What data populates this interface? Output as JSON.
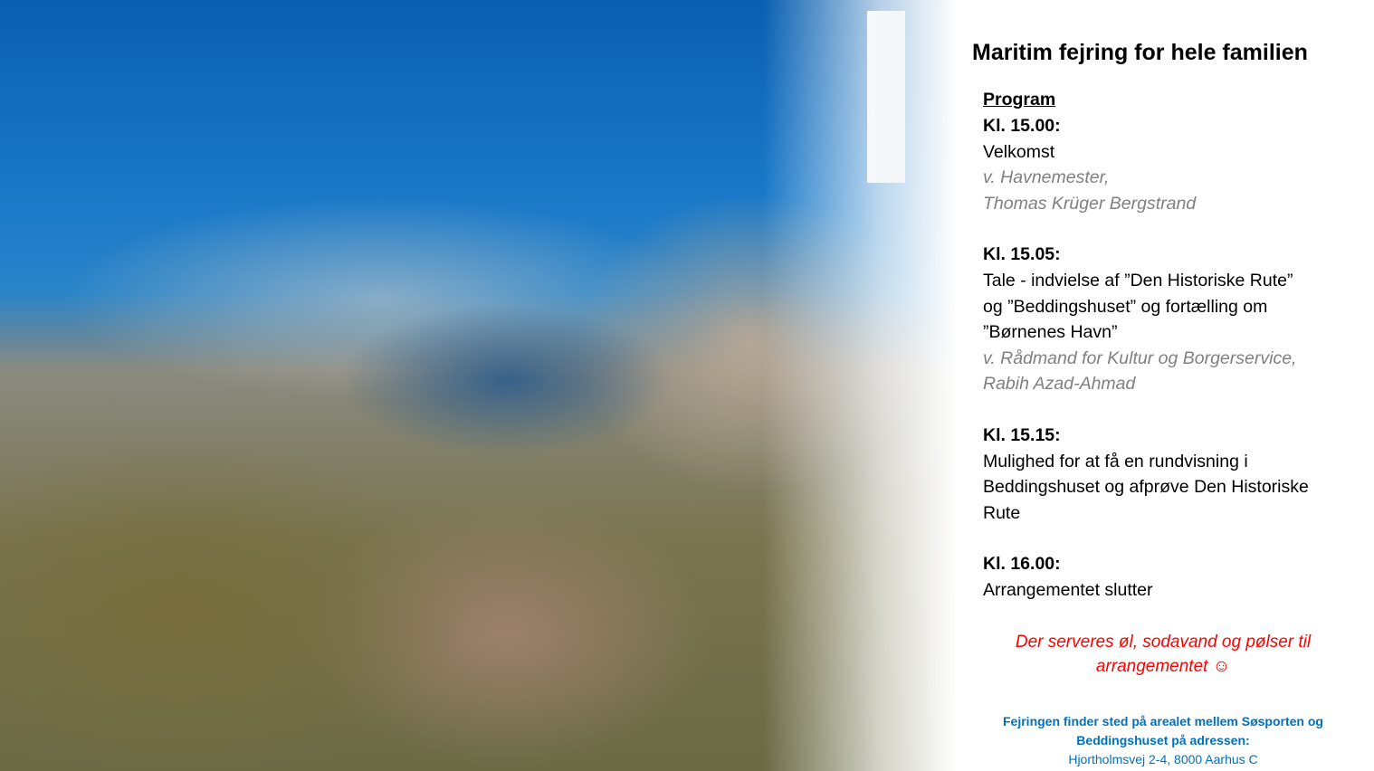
{
  "title": "Maritim fejring for hele familien",
  "program_heading": "Program",
  "items": [
    {
      "time": "Kl. 15.00:",
      "lines": [
        "Velkomst"
      ],
      "speaker": [
        "v. Havnemester,",
        "Thomas Krüger Bergstrand"
      ]
    },
    {
      "time": "Kl. 15.05:",
      "lines": [
        "Tale - indvielse af ”Den Historiske Rute”",
        "og ”Beddingshuset” og fortælling om",
        "”Børnenes Havn”"
      ],
      "speaker": [
        "v. Rådmand for Kultur og Borgerservice,",
        "Rabih Azad-Ahmad"
      ]
    },
    {
      "time": "Kl. 15.15:",
      "lines": [
        "Mulighed for at få en rundvisning i",
        "Beddingshuset og afprøve Den Historiske",
        "Rute"
      ]
    },
    {
      "time": "Kl. 16.00:",
      "lines": [
        "Arrangementet slutter"
      ]
    }
  ],
  "note": [
    "Der serveres øl, sodavand og pølser til",
    "arrangementet ☺"
  ],
  "location": [
    "Fejringen finder sted på arealet mellem Søsporten og",
    "Beddingshuset på adressen:",
    "Hjortholmsvej 2-4, 8000 Aarhus C"
  ],
  "colors": {
    "note": "#ff0000",
    "location": "#0070c0",
    "speaker": "#808080"
  }
}
